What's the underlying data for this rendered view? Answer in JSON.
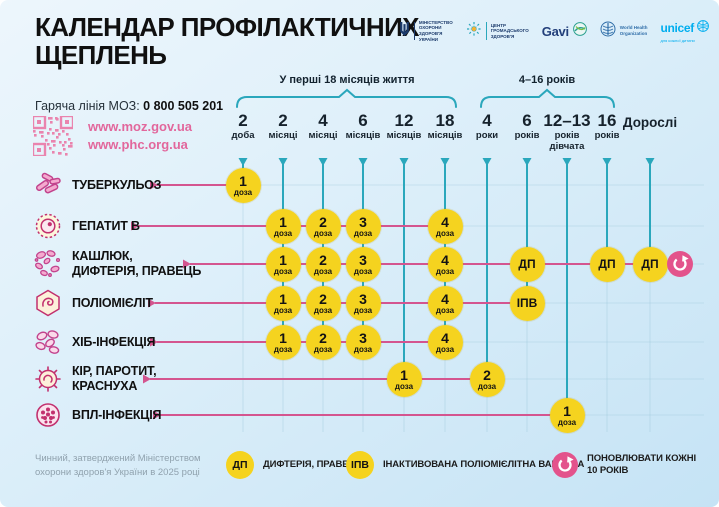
{
  "header": {
    "title_line1": "КАЛЕНДАР ПРОФІЛАКТИЧНИХ",
    "title_line2": "ЩЕПЛЕНЬ",
    "hotline_label": "Гаряча лінія МОЗ:",
    "hotline_number": "0 800 505 201",
    "links": [
      "www.moz.gov.ua",
      "www.phc.org.ua"
    ],
    "logos": [
      {
        "name": "moz",
        "text": "МІНІСТЕРСТВО\nОХОРОНИ\nЗДОРОВ'Я\nУКРАЇНИ"
      },
      {
        "name": "phc",
        "text": "ЦЕНТР\nГРОМАДСЬКОГО\nЗДОРОВ'Я"
      },
      {
        "name": "gavi",
        "text": "Gavi"
      },
      {
        "name": "who",
        "text": "World Health\nOrganization"
      },
      {
        "name": "unicef",
        "text": "unicef",
        "tagline": "для кожної дитини"
      }
    ]
  },
  "timeline": {
    "groups": [
      {
        "label": "У перші 18 місяців життя"
      },
      {
        "label": "4–16 років"
      }
    ],
    "columns": [
      {
        "number": "2",
        "unit": "доба"
      },
      {
        "number": "2",
        "unit": "місяці"
      },
      {
        "number": "4",
        "unit": "місяці"
      },
      {
        "number": "6",
        "unit": "місяців"
      },
      {
        "number": "12",
        "unit": "місяців"
      },
      {
        "number": "18",
        "unit": "місяців"
      },
      {
        "number": "4",
        "unit": "роки"
      },
      {
        "number": "6",
        "unit": "років"
      },
      {
        "number": "12–13",
        "unit": "років\nдівчата"
      },
      {
        "number": "16",
        "unit": "років"
      },
      {
        "number": "Дорослі",
        "unit": ""
      }
    ]
  },
  "rows": [
    {
      "name": "tuberculosis",
      "icon": "tuberculosis-bacteria-icon",
      "label": "ТУБЕРКУЛЬОЗ",
      "doses": [
        {
          "col": 0,
          "value": "1",
          "sub": "доза"
        }
      ]
    },
    {
      "name": "hepatitis-b",
      "icon": "hepatitis-b-virus-icon",
      "label": "ГЕПАТИТ В",
      "doses": [
        {
          "col": 1,
          "value": "1",
          "sub": "доза"
        },
        {
          "col": 2,
          "value": "2",
          "sub": "доза"
        },
        {
          "col": 3,
          "value": "3",
          "sub": "доза"
        },
        {
          "col": 5,
          "value": "4",
          "sub": "доза"
        }
      ]
    },
    {
      "name": "pertussis-diphtheria-tetanus",
      "icon": "pertussis-bacteria-icon",
      "label": "КАШЛЮК,\nДИФТЕРІЯ, ПРАВЕЦЬ",
      "doses": [
        {
          "col": 1,
          "value": "1",
          "sub": "доза"
        },
        {
          "col": 2,
          "value": "2",
          "sub": "доза"
        },
        {
          "col": 3,
          "value": "3",
          "sub": "доза"
        },
        {
          "col": 5,
          "value": "4",
          "sub": "доза"
        },
        {
          "col": 7,
          "value": "ДП"
        },
        {
          "col": 9,
          "value": "ДП"
        },
        {
          "col": 10,
          "value": "ДП",
          "refresh": true
        }
      ]
    },
    {
      "name": "poliomyelitis",
      "icon": "polio-virus-icon",
      "label": "ПОЛІОМІЄЛІТ",
      "doses": [
        {
          "col": 1,
          "value": "1",
          "sub": "доза"
        },
        {
          "col": 2,
          "value": "2",
          "sub": "доза"
        },
        {
          "col": 3,
          "value": "3",
          "sub": "доза"
        },
        {
          "col": 5,
          "value": "4",
          "sub": "доза"
        },
        {
          "col": 7,
          "value": "ІПВ"
        }
      ]
    },
    {
      "name": "hib-infection",
      "icon": "hib-bacteria-icon",
      "label": "ХІБ-ІНФЕКЦІЯ",
      "doses": [
        {
          "col": 1,
          "value": "1",
          "sub": "доза"
        },
        {
          "col": 2,
          "value": "2",
          "sub": "доза"
        },
        {
          "col": 3,
          "value": "3",
          "sub": "доза"
        },
        {
          "col": 5,
          "value": "4",
          "sub": "доза"
        }
      ]
    },
    {
      "name": "measles-mumps-rubella",
      "icon": "measles-virus-icon",
      "label": "КІР, ПАРОТИТ,\nКРАСНУХА",
      "doses": [
        {
          "col": 4,
          "value": "1",
          "sub": "доза"
        },
        {
          "col": 6,
          "value": "2",
          "sub": "доза"
        }
      ]
    },
    {
      "name": "hpv-infection",
      "icon": "hpv-virus-icon",
      "label": "ВПЛ-ІНФЕКЦІЯ",
      "doses": [
        {
          "col": 8,
          "value": "1",
          "sub": "доза"
        }
      ]
    }
  ],
  "legend": [
    {
      "badge": "ДП",
      "text": "ДИФТЕРІЯ, ПРАВЕЦЬ"
    },
    {
      "badge": "ІПВ",
      "text": "ІНАКТИВОВАНА ПОЛІОМІЄЛІТНА ВАКЦИНА"
    },
    {
      "badge": "refresh",
      "text": "ПОНОВЛЮВАТИ КОЖНІ\n10 РОКІВ"
    }
  ],
  "footer_note": "Чинний, затверджений Міністерством\nохорони здоров'я України в 2025 році",
  "colors": {
    "accent_pink": "#D4558F",
    "accent_teal": "#2AA7BC",
    "dose_yellow": "#F5D31F",
    "refresh_pink": "#E3538C",
    "link_pink": "#E2679C"
  }
}
